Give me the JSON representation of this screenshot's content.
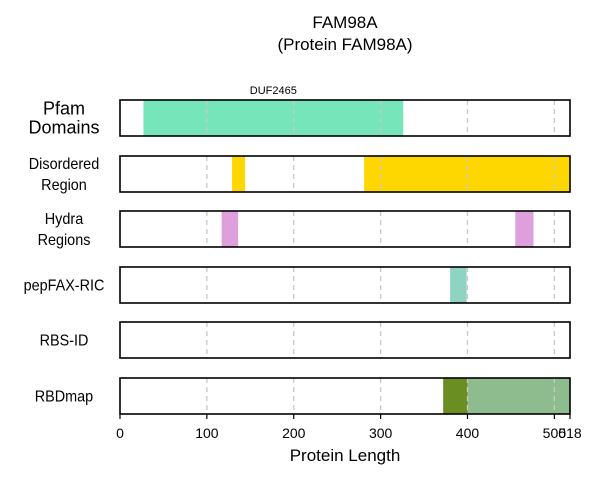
{
  "chart_data": {
    "type": "track",
    "title_lines": [
      "FAM98A",
      "(Protein FAM98A)"
    ],
    "xlabel": "Protein Length",
    "xlim": [
      0,
      518
    ],
    "xticks": [
      0,
      100,
      200,
      300,
      400,
      500,
      518
    ],
    "grid_x": [
      100,
      200,
      300,
      400,
      500
    ],
    "rows": [
      {
        "key": "pfam",
        "label_lines": [
          "Pfam",
          "Domains"
        ],
        "regions": [
          {
            "start": 27,
            "end": 326,
            "color": "#77E5BA",
            "label": "DUF2465"
          }
        ]
      },
      {
        "key": "disordered",
        "label_lines": [
          "Disordered",
          "Region"
        ],
        "regions": [
          {
            "start": 129,
            "end": 144,
            "color": "#FFD700"
          },
          {
            "start": 281,
            "end": 518,
            "color": "#FFD700"
          }
        ]
      },
      {
        "key": "hydra",
        "label_lines": [
          "Hydra",
          "Regions"
        ],
        "regions": [
          {
            "start": 117,
            "end": 136,
            "color": "#DDA0DD"
          },
          {
            "start": 455,
            "end": 476,
            "color": "#DDA0DD"
          }
        ]
      },
      {
        "key": "pepfax",
        "label_lines": [
          "pepFAX-RIC"
        ],
        "regions": [
          {
            "start": 380,
            "end": 399,
            "color": "#8FD3C3"
          }
        ]
      },
      {
        "key": "rbsid",
        "label_lines": [
          "RBS-ID"
        ],
        "regions": []
      },
      {
        "key": "rbdmap",
        "label_lines": [
          "RBDmap"
        ],
        "regions": [
          {
            "start": 372,
            "end": 400,
            "color": "#6B8E23"
          },
          {
            "start": 400,
            "end": 518,
            "color": "#8FBC8F"
          }
        ]
      }
    ]
  }
}
